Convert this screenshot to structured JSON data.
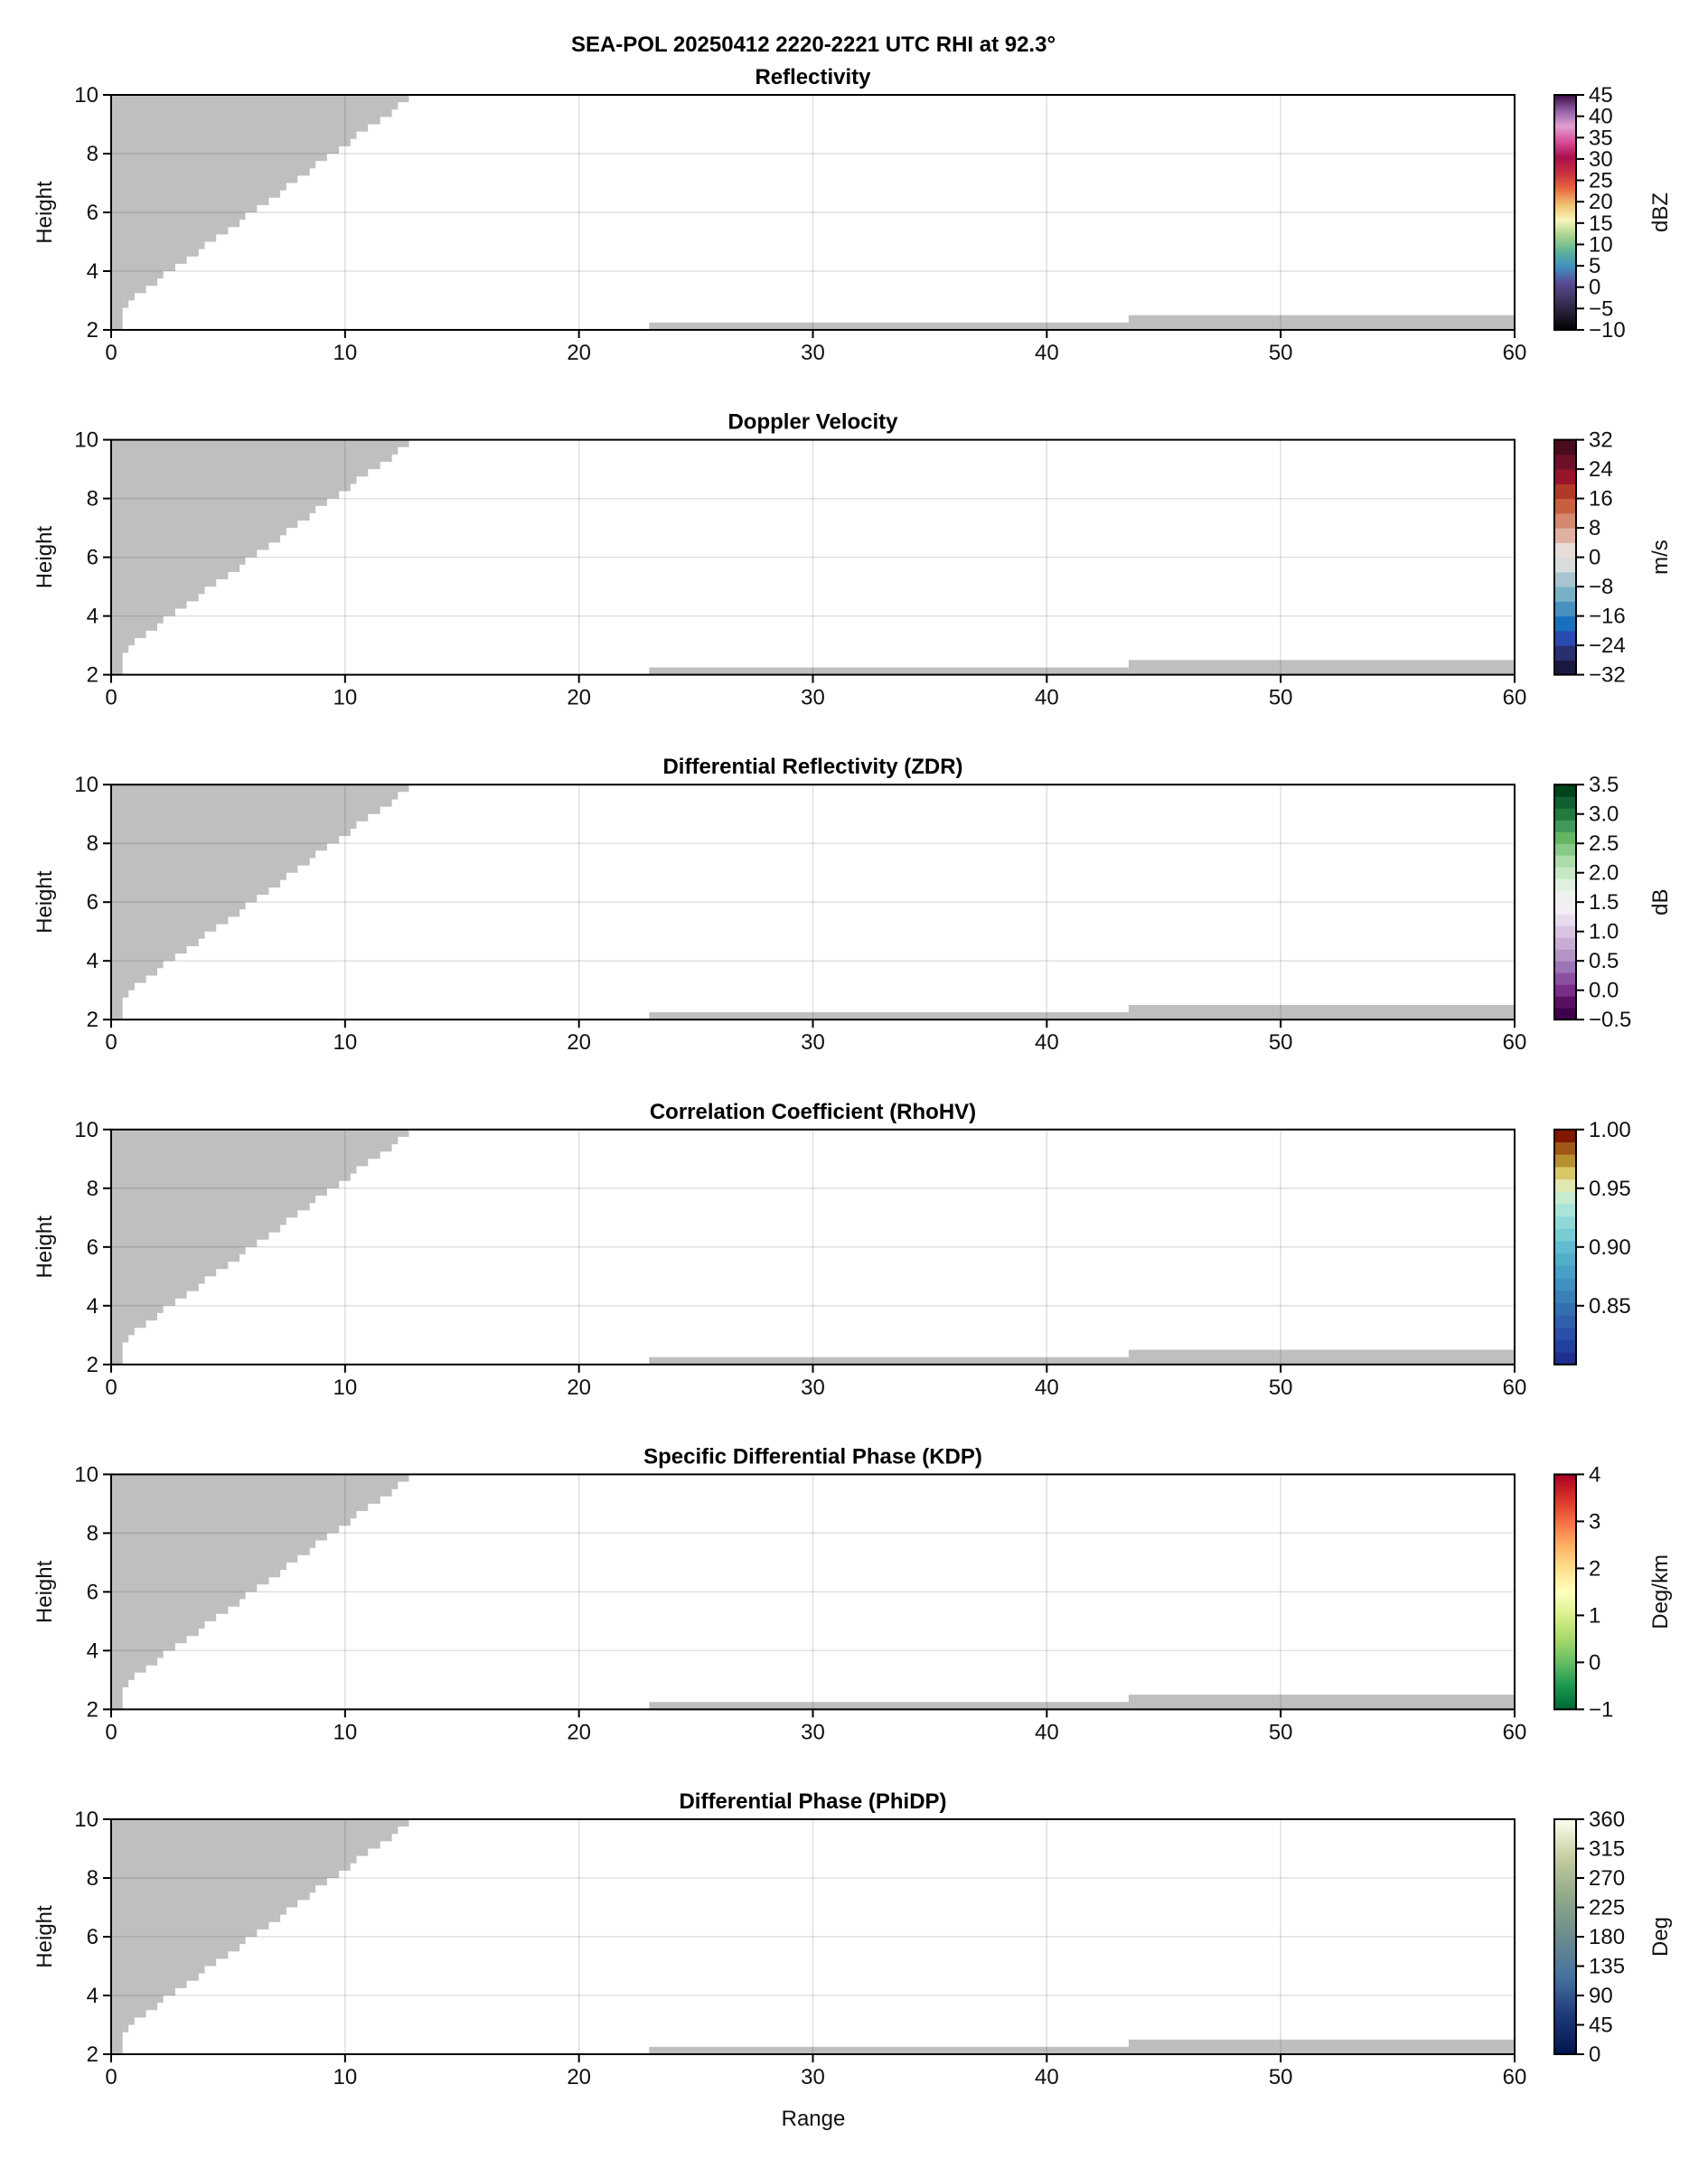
{
  "figure": {
    "title": "SEA-POL 20250412 2220-2221 UTC RHI at 92.3°",
    "xlabel": "Range",
    "ylabel": "Height"
  },
  "masked_area": {
    "color": "#bfbfbf",
    "upper_left_bands": {
      "top_heights": [
        10,
        9.75,
        9.5,
        9.25,
        9,
        8.75,
        8.5,
        8.25,
        8,
        7.75,
        7.5,
        7.25,
        7,
        6.75,
        6.5,
        6.25,
        6,
        5.75,
        5.5,
        5.25,
        5,
        4.75,
        4.5,
        4.25,
        4,
        3.75,
        3.5,
        3.25,
        3,
        2.75
      ],
      "max_ranges": [
        12.73,
        12.26,
        12.0,
        11.5,
        10.98,
        10.49,
        10.23,
        9.74,
        9.23,
        8.74,
        8.49,
        7.97,
        7.49,
        7.23,
        6.74,
        6.23,
        5.74,
        5.49,
        5.0,
        4.49,
        4.0,
        3.74,
        3.23,
        2.74,
        2.23,
        1.97,
        1.49,
        1.0,
        0.74,
        0.49
      ],
      "bottom_height": 2
    },
    "lower_blocks": [
      {
        "range": [
          23,
          43.5
        ],
        "height": [
          2,
          2.25
        ]
      },
      {
        "range": [
          43.5,
          60
        ],
        "height": [
          2,
          2.5
        ]
      }
    ]
  },
  "chart_data": [
    {
      "type": "heatmap",
      "title": "Reflectivity",
      "xlim": [
        0,
        60
      ],
      "ylim": [
        2,
        10
      ],
      "xticks": [
        "0",
        "10",
        "20",
        "30",
        "40",
        "50",
        "60"
      ],
      "yticks": [
        "2",
        "4",
        "6",
        "8",
        "10"
      ],
      "grid": true,
      "colorbar": {
        "label": "dBZ",
        "range": [
          -10,
          45
        ],
        "ticks": [
          "−10",
          "−5",
          "0",
          "5",
          "10",
          "15",
          "20",
          "25",
          "30",
          "35",
          "40",
          "45"
        ],
        "tick_values": [
          -10,
          -5,
          0,
          5,
          10,
          15,
          20,
          25,
          30,
          35,
          40,
          45
        ],
        "colors": [
          "#000000",
          "#241c30",
          "#3e3460",
          "#5a4a94",
          "#3f8fc0",
          "#5fb39a",
          "#a6d28c",
          "#f8f6b8",
          "#f0c070",
          "#e86a40",
          "#c8303c",
          "#a8104c",
          "#d84c98",
          "#e0a0d0",
          "#9060a8",
          "#3a0a40"
        ]
      }
    },
    {
      "type": "heatmap",
      "title": "Doppler Velocity",
      "xlim": [
        0,
        60
      ],
      "ylim": [
        2,
        10
      ],
      "xticks": [
        "0",
        "10",
        "20",
        "30",
        "40",
        "50",
        "60"
      ],
      "yticks": [
        "2",
        "4",
        "6",
        "8",
        "10"
      ],
      "grid": true,
      "colorbar": {
        "label": "m/s",
        "range": [
          -32,
          32
        ],
        "ticks": [
          "−32",
          "−24",
          "−16",
          "−8",
          "0",
          "8",
          "16",
          "24",
          "32"
        ],
        "tick_values": [
          -32,
          -24,
          -16,
          -8,
          0,
          8,
          16,
          24,
          32
        ],
        "discrete": true,
        "colors": [
          "#1a1a40",
          "#283070",
          "#2a4ab0",
          "#1a70c0",
          "#4890c0",
          "#78b0c8",
          "#a8c4d0",
          "#d8dcdc",
          "#e8dcd8",
          "#e0b0a0",
          "#d48870",
          "#c86040",
          "#b03a28",
          "#981428",
          "#6e1028",
          "#4a0c1c"
        ]
      }
    },
    {
      "type": "heatmap",
      "title": "Differential Reflectivity (ZDR)",
      "xlim": [
        0,
        60
      ],
      "ylim": [
        2,
        10
      ],
      "xticks": [
        "0",
        "10",
        "20",
        "30",
        "40",
        "50",
        "60"
      ],
      "yticks": [
        "2",
        "4",
        "6",
        "8",
        "10"
      ],
      "grid": true,
      "colorbar": {
        "label": "dB",
        "range": [
          -0.5,
          3.5
        ],
        "ticks": [
          "−0.5",
          "0.0",
          "0.5",
          "1.0",
          "1.5",
          "2.0",
          "2.5",
          "3.0",
          "3.5"
        ],
        "tick_values": [
          -0.5,
          0,
          0.5,
          1,
          1.5,
          2,
          2.5,
          3,
          3.5
        ],
        "discrete": true,
        "colors": [
          "#40004b",
          "#5a1060",
          "#7b2d8a",
          "#8c50a0",
          "#9d74b5",
          "#b494c4",
          "#c8acd4",
          "#dac4e2",
          "#e8dcec",
          "#f2eef4",
          "#eef2ee",
          "#e0f0e0",
          "#c8e8c4",
          "#acdca8",
          "#88c888",
          "#64b464",
          "#40985a",
          "#227a3c",
          "#106030",
          "#00441b"
        ]
      }
    },
    {
      "type": "heatmap",
      "title": "Correlation Coefficient (RhoHV)",
      "xlim": [
        0,
        60
      ],
      "ylim": [
        2,
        10
      ],
      "xticks": [
        "0",
        "10",
        "20",
        "30",
        "40",
        "50",
        "60"
      ],
      "yticks": [
        "2",
        "4",
        "6",
        "8",
        "10"
      ],
      "grid": true,
      "colorbar": {
        "label": "",
        "range": [
          0.8,
          1.0
        ],
        "ticks": [
          "0.85",
          "0.90",
          "0.95",
          "1.00"
        ],
        "tick_values": [
          0.85,
          0.9,
          0.95,
          1.0
        ],
        "discrete": true,
        "colors": [
          "#1e2f90",
          "#22409e",
          "#2a50a8",
          "#3060ac",
          "#3470b0",
          "#3a80b8",
          "#4090c0",
          "#48a0c8",
          "#50aec8",
          "#60bcd0",
          "#78ccd4",
          "#90d8d8",
          "#a8e4d8",
          "#c4ecd0",
          "#e0e8b0",
          "#d8c868",
          "#b89030",
          "#a05818",
          "#801800"
        ]
      }
    },
    {
      "type": "heatmap",
      "title": "Specific Differential Phase (KDP)",
      "xlim": [
        0,
        60
      ],
      "ylim": [
        2,
        10
      ],
      "xticks": [
        "0",
        "10",
        "20",
        "30",
        "40",
        "50",
        "60"
      ],
      "yticks": [
        "2",
        "4",
        "6",
        "8",
        "10"
      ],
      "grid": true,
      "colorbar": {
        "label": "Deg/km",
        "range": [
          -1,
          4
        ],
        "ticks": [
          "−1",
          "0",
          "1",
          "2",
          "3",
          "4"
        ],
        "tick_values": [
          -1,
          0,
          1,
          2,
          3,
          4
        ],
        "colors": [
          "#006837",
          "#1a9850",
          "#66bd63",
          "#a6d96a",
          "#d9ef8b",
          "#ffffbf",
          "#fee08b",
          "#fdae61",
          "#f46d43",
          "#d73027",
          "#a50026"
        ]
      }
    },
    {
      "type": "heatmap",
      "title": "Differential Phase (PhiDP)",
      "xlim": [
        0,
        60
      ],
      "ylim": [
        2,
        10
      ],
      "xticks": [
        "0",
        "10",
        "20",
        "30",
        "40",
        "50",
        "60"
      ],
      "yticks": [
        "2",
        "4",
        "6",
        "8",
        "10"
      ],
      "grid": true,
      "colorbar": {
        "label": "Deg",
        "range": [
          0,
          360
        ],
        "ticks": [
          "0",
          "45",
          "90",
          "135",
          "180",
          "225",
          "270",
          "315",
          "360"
        ],
        "tick_values": [
          0,
          45,
          90,
          135,
          180,
          225,
          270,
          315,
          360
        ],
        "colors": [
          "#00154d",
          "#1e3a7a",
          "#47729e",
          "#6b8c8c",
          "#8fa88a",
          "#c4cc9e",
          "#fffff0"
        ]
      }
    }
  ]
}
